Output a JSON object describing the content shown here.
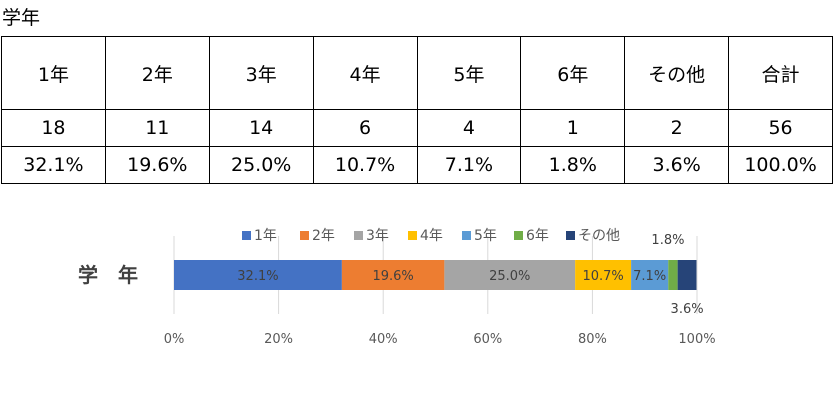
{
  "section_title": "学年",
  "table": {
    "headers": [
      "1年",
      "2年",
      "3年",
      "4年",
      "5年",
      "6年",
      "その他",
      "合計"
    ],
    "counts": [
      "18",
      "11",
      "14",
      "6",
      "4",
      "1",
      "2",
      "56"
    ],
    "percents": [
      "32.1%",
      "19.6%",
      "25.0%",
      "10.7%",
      "7.1%",
      "1.8%",
      "3.6%",
      "100.0%"
    ]
  },
  "chart_data": {
    "type": "bar",
    "orientation": "horizontal",
    "stacked": "percent",
    "categories": [
      "学　年"
    ],
    "series": [
      {
        "name": "1年",
        "values": [
          32.1
        ],
        "color": "#4472C4",
        "label": "32.1%"
      },
      {
        "name": "2年",
        "values": [
          19.6
        ],
        "color": "#ED7D31",
        "label": "19.6%"
      },
      {
        "name": "3年",
        "values": [
          25.0
        ],
        "color": "#A5A5A5",
        "label": "25.0%"
      },
      {
        "name": "4年",
        "values": [
          10.7
        ],
        "color": "#FFC000",
        "label": "10.7%"
      },
      {
        "name": "5年",
        "values": [
          7.1
        ],
        "color": "#5B9BD5",
        "label": "7.1%"
      },
      {
        "name": "6年",
        "values": [
          1.8
        ],
        "color": "#70AD47",
        "label": "1.8%"
      },
      {
        "name": "その他",
        "values": [
          3.6
        ],
        "color": "#264478",
        "label": "3.6%"
      }
    ],
    "xlim": [
      0,
      100
    ],
    "xticks": [
      "0%",
      "20%",
      "40%",
      "60%",
      "80%",
      "100%"
    ],
    "legend_position": "top",
    "grid": true
  }
}
